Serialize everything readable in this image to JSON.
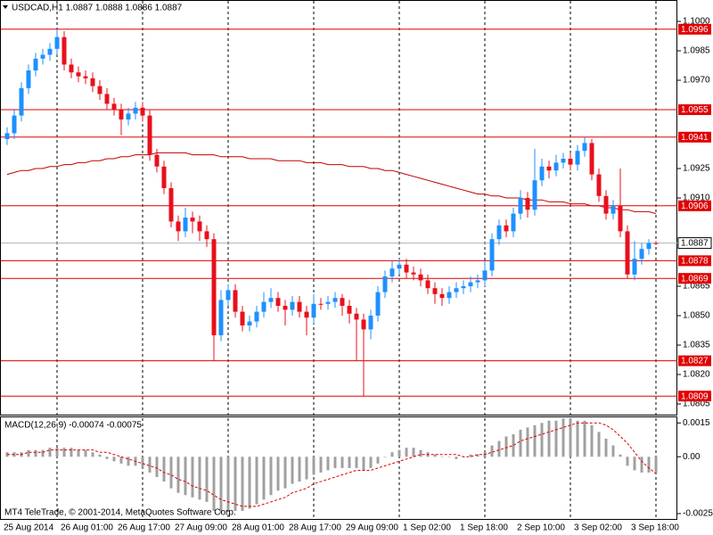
{
  "chart_data": [
    {
      "type": "candlestick",
      "title": "USDCAD,H1 1.0887 1.0888 1.0886 1.0887",
      "categories": [
        "25 Aug 2014",
        null,
        null,
        null,
        null,
        null,
        null,
        null,
        "26 Aug 01:00",
        null,
        null,
        null,
        null,
        null,
        null,
        null,
        "26 Aug 17:00",
        null,
        null,
        null,
        null,
        null,
        null,
        null,
        "27 Aug 09:00",
        null,
        null,
        null,
        null,
        null,
        null,
        null,
        "28 Aug 01:00",
        null,
        null,
        null,
        null,
        null,
        null,
        null,
        "28 Aug 17:00",
        null,
        null,
        null,
        null,
        null,
        null,
        null,
        "29 Aug 09:00",
        null,
        null,
        null,
        null,
        null,
        null,
        null,
        "1 Sep 02:00",
        null,
        null,
        null,
        null,
        null,
        null,
        null,
        "1 Sep 18:00",
        null,
        null,
        null,
        null,
        null,
        null,
        null,
        "2 Sep 10:00",
        null,
        null,
        null,
        null,
        null,
        null,
        null,
        "3 Sep 02:00",
        null,
        null,
        null,
        null,
        null,
        null,
        null,
        "3 Sep 18:00",
        null,
        null,
        null
      ],
      "open": [
        1.094,
        1.0943,
        1.0952,
        1.0966,
        1.0975,
        1.0981,
        1.0983,
        1.0986,
        1.0992,
        1.0978,
        1.0974,
        1.0972,
        1.0971,
        1.0967,
        1.0963,
        1.0958,
        1.0955,
        1.095,
        1.0953,
        1.0956,
        1.0952,
        1.0932,
        1.0926,
        1.0915,
        1.0898,
        1.0893,
        1.09,
        1.0898,
        1.0893,
        1.0889,
        1.084,
        1.0858,
        1.0863,
        1.0852,
        1.0845,
        1.0847,
        1.0852,
        1.0857,
        1.0859,
        1.0855,
        1.0853,
        1.0857,
        1.0852,
        1.0849,
        1.0856,
        1.0856,
        1.0857,
        1.0859,
        1.0855,
        1.0851,
        1.0848,
        1.0843,
        1.085,
        1.0862,
        1.087,
        1.0874,
        1.0876,
        1.0872,
        1.0871,
        1.0868,
        1.0864,
        1.0861,
        1.0859,
        1.0862,
        1.0864,
        1.0865,
        1.0867,
        1.0868,
        1.0873,
        1.0889,
        1.0896,
        1.0893,
        1.0902,
        1.091,
        1.0904,
        1.0919,
        1.0926,
        1.0924,
        1.0928,
        1.093,
        1.0927,
        1.0934,
        1.0938,
        1.0922,
        1.0911,
        1.0902,
        1.0906,
        1.0893,
        1.0871,
        1.0879,
        1.0884,
        1.0887
      ],
      "high": [
        1.0946,
        1.0955,
        1.0969,
        1.0978,
        1.0984,
        1.0986,
        1.0989,
        1.0996,
        1.0995,
        1.0981,
        1.0977,
        1.0975,
        1.0974,
        1.097,
        1.0966,
        1.0961,
        1.0958,
        1.0956,
        1.0959,
        1.0959,
        1.0955,
        1.0935,
        1.0929,
        1.0918,
        1.0901,
        1.0905,
        1.0903,
        1.0901,
        1.0896,
        1.0892,
        1.0863,
        1.0866,
        1.0866,
        1.0855,
        1.085,
        1.0855,
        1.0862,
        1.0864,
        1.0862,
        1.0858,
        1.086,
        1.086,
        1.0855,
        1.0861,
        1.0859,
        1.086,
        1.0862,
        1.0861,
        1.0858,
        1.0854,
        1.0851,
        1.0853,
        1.0865,
        1.0873,
        1.0878,
        1.0879,
        1.0879,
        1.0875,
        1.0874,
        1.0871,
        1.0867,
        1.0864,
        1.0865,
        1.0867,
        1.0868,
        1.087,
        1.0871,
        1.0878,
        1.0892,
        1.0899,
        1.0899,
        1.0905,
        1.0914,
        1.0913,
        1.0935,
        1.093,
        1.0929,
        1.0932,
        1.0933,
        1.0933,
        1.0937,
        1.0941,
        1.094,
        1.0925,
        1.0914,
        1.0909,
        1.0925,
        1.0896,
        1.0888,
        1.0887,
        1.0889,
        1.0888
      ],
      "low": [
        1.0937,
        1.094,
        1.0949,
        1.0963,
        1.0972,
        1.0978,
        1.098,
        1.0983,
        1.0975,
        1.0971,
        1.0969,
        1.0968,
        1.0964,
        1.096,
        1.0955,
        1.0952,
        1.0942,
        1.0947,
        1.095,
        1.0949,
        1.0929,
        1.0923,
        1.0912,
        1.0895,
        1.0888,
        1.089,
        1.0892,
        1.0888,
        1.0885,
        1.0827,
        1.0837,
        1.0855,
        1.0849,
        1.0842,
        1.0842,
        1.0844,
        1.0849,
        1.0854,
        1.0852,
        1.0845,
        1.085,
        1.0849,
        1.084,
        1.0846,
        1.0853,
        1.0853,
        1.0854,
        1.085,
        1.0846,
        1.0827,
        1.0809,
        1.0838,
        1.0847,
        1.0859,
        1.0867,
        1.0871,
        1.0869,
        1.0868,
        1.0865,
        1.0861,
        1.0856,
        1.0855,
        1.0856,
        1.0859,
        1.0861,
        1.0862,
        1.0864,
        1.0865,
        1.087,
        1.0886,
        1.089,
        1.089,
        1.0899,
        1.09,
        1.0901,
        1.0916,
        1.092,
        1.0921,
        1.0925,
        1.0924,
        1.0924,
        1.0931,
        1.0919,
        1.0908,
        1.0899,
        1.0899,
        1.089,
        1.0869,
        1.0868,
        1.0876,
        1.0881,
        1.0886
      ],
      "close": [
        1.0943,
        1.0952,
        1.0966,
        1.0975,
        1.0981,
        1.0983,
        1.0986,
        1.0992,
        1.0978,
        1.0974,
        1.0972,
        1.0971,
        1.0967,
        1.0963,
        1.0958,
        1.0955,
        1.095,
        1.0953,
        1.0956,
        1.0952,
        1.0932,
        1.0926,
        1.0915,
        1.0898,
        1.0893,
        1.09,
        1.0898,
        1.0893,
        1.0889,
        1.084,
        1.0858,
        1.0863,
        1.0852,
        1.0845,
        1.0847,
        1.0852,
        1.0857,
        1.0859,
        1.0855,
        1.0853,
        1.0857,
        1.0852,
        1.0849,
        1.0856,
        1.0856,
        1.0857,
        1.0859,
        1.0855,
        1.0851,
        1.0848,
        1.0843,
        1.085,
        1.0862,
        1.087,
        1.0874,
        1.0876,
        1.0872,
        1.0871,
        1.0868,
        1.0864,
        1.0861,
        1.0859,
        1.0862,
        1.0864,
        1.0865,
        1.0867,
        1.0868,
        1.0873,
        1.0889,
        1.0896,
        1.0893,
        1.0902,
        1.091,
        1.0904,
        1.0919,
        1.0926,
        1.0924,
        1.0928,
        1.093,
        1.0927,
        1.0934,
        1.0938,
        1.0922,
        1.0911,
        1.0902,
        1.0906,
        1.0893,
        1.0871,
        1.0879,
        1.0884,
        1.0887,
        1.0887
      ],
      "up_color": "#1e90ff",
      "down_color": "#e8101c",
      "ma": {
        "color": "#c00000",
        "values": [
          1.0922,
          1.0923,
          1.0924,
          1.0924,
          1.0925,
          1.0925,
          1.0926,
          1.0926,
          1.0927,
          1.0927,
          1.0928,
          1.0928,
          1.0929,
          1.0929,
          1.093,
          1.093,
          1.0931,
          1.0931,
          1.0932,
          1.0932,
          1.0932,
          1.0933,
          1.0933,
          1.0933,
          1.0933,
          1.0933,
          1.0932,
          1.0932,
          1.0932,
          1.0932,
          1.0931,
          1.0931,
          1.0931,
          1.0931,
          1.093,
          1.093,
          1.093,
          1.093,
          1.0929,
          1.0929,
          1.0929,
          1.0929,
          1.0928,
          1.0928,
          1.0928,
          1.0927,
          1.0927,
          1.0927,
          1.0926,
          1.0926,
          1.0926,
          1.0925,
          1.0925,
          1.0924,
          1.0924,
          1.0923,
          1.0922,
          1.0921,
          1.092,
          1.0919,
          1.0918,
          1.0917,
          1.0916,
          1.0915,
          1.0914,
          1.0913,
          1.0912,
          1.0912,
          1.0911,
          1.0911,
          1.091,
          1.091,
          1.091,
          1.0909,
          1.0909,
          1.0909,
          1.0908,
          1.0908,
          1.0908,
          1.0907,
          1.0907,
          1.0907,
          1.0906,
          1.0906,
          1.0905,
          1.0905,
          1.0904,
          1.0904,
          1.0903,
          1.0903,
          1.0903,
          1.0902
        ]
      },
      "levels": [
        1.0996,
        1.0955,
        1.0941,
        1.0906,
        1.0878,
        1.0869,
        1.0827,
        1.0809
      ],
      "level_color": "#e00000",
      "bid": 1.0887,
      "ylim": [
        1.08,
        1.101
      ],
      "yticks": [
        {
          "value": 1.1,
          "label": "1.1000"
        },
        1.0985,
        {
          "value": 1.097,
          "label": "1.0970"
        },
        1.0925,
        {
          "value": 1.091,
          "label": "1.0910"
        },
        1.0865,
        {
          "value": 1.085,
          "label": "1.0850"
        },
        1.0835,
        {
          "value": 1.082,
          "label": "1.0820"
        },
        1.0805
      ]
    },
    {
      "type": "macd",
      "title": "MACD(12,26,9) -0.00074 -0.00075",
      "histogram": {
        "color": "#a0a0a0",
        "values": [
          0.0002,
          0.0002,
          0.0002,
          0.0003,
          0.0003,
          0.0003,
          0.0004,
          0.0004,
          0.0004,
          0.0004,
          0.0003,
          0.0003,
          0.0002,
          0.0001,
          -0.0001,
          -0.0002,
          -0.0003,
          -0.0004,
          -0.0004,
          -0.0005,
          -0.0007,
          -0.0009,
          -0.0011,
          -0.0014,
          -0.0016,
          -0.0017,
          -0.0018,
          -0.0019,
          -0.002,
          -0.0024,
          -0.0025,
          -0.0024,
          -0.0024,
          -0.0024,
          -0.0023,
          -0.0021,
          -0.0019,
          -0.0017,
          -0.0015,
          -0.0014,
          -0.0012,
          -0.0011,
          -0.001,
          -0.0008,
          -0.0007,
          -0.0006,
          -0.0005,
          -0.0005,
          -0.0005,
          -0.0005,
          -0.0006,
          -0.0005,
          -0.0003,
          0.0,
          0.0002,
          0.0003,
          0.0004,
          0.0004,
          0.0003,
          0.0002,
          0.0001,
          0.0,
          0.0,
          -0.0001,
          0.0,
          0.0001,
          0.0001,
          0.0002,
          0.0005,
          0.0007,
          0.0009,
          0.001,
          0.0012,
          0.0013,
          0.0014,
          0.0015,
          0.0016,
          0.0016,
          0.0017,
          0.0017,
          0.0016,
          0.0016,
          0.0014,
          0.0011,
          0.0008,
          0.0005,
          0.0001,
          -0.0004,
          -0.0006,
          -0.0007,
          -0.0007,
          -0.00074
        ]
      },
      "signal": {
        "color": "#e00000",
        "values": [
          0.0001,
          0.0001,
          0.0001,
          0.0002,
          0.0002,
          0.0002,
          0.0003,
          0.0003,
          0.0003,
          0.0003,
          0.0003,
          0.0003,
          0.0003,
          0.0002,
          0.0002,
          0.0001,
          0.0,
          -0.0001,
          -0.0002,
          -0.0003,
          -0.0004,
          -0.0005,
          -0.0007,
          -0.0008,
          -0.001,
          -0.0011,
          -0.0013,
          -0.0014,
          -0.0015,
          -0.0017,
          -0.0019,
          -0.002,
          -0.0021,
          -0.0022,
          -0.0022,
          -0.0022,
          -0.0021,
          -0.002,
          -0.0019,
          -0.0018,
          -0.0016,
          -0.0015,
          -0.0014,
          -0.0012,
          -0.0011,
          -0.001,
          -0.0009,
          -0.0008,
          -0.0007,
          -0.0006,
          -0.0006,
          -0.0006,
          -0.0005,
          -0.0004,
          -0.0003,
          -0.0002,
          -0.0001,
          0.0,
          0.0001,
          0.0001,
          0.0001,
          0.0001,
          0.0001,
          0.0001,
          0.0,
          0.0,
          0.0001,
          0.0001,
          0.0002,
          0.0003,
          0.0004,
          0.0005,
          0.0007,
          0.0008,
          0.0009,
          0.001,
          0.0011,
          0.0012,
          0.0013,
          0.0014,
          0.0015,
          0.0015,
          0.0015,
          0.0015,
          0.0014,
          0.0012,
          0.0009,
          0.0006,
          0.0002,
          -0.0002,
          -0.0005,
          -0.00075
        ]
      },
      "ylim": [
        -0.00252,
        0.00175
      ],
      "yticks": [
        0.0015,
        {
          "value": 0,
          "label": "0.00"
        },
        -0.00252
      ]
    }
  ],
  "footer": "MT4 TeleTrade, © 2001-2014, MetaQuotes Software Corp."
}
